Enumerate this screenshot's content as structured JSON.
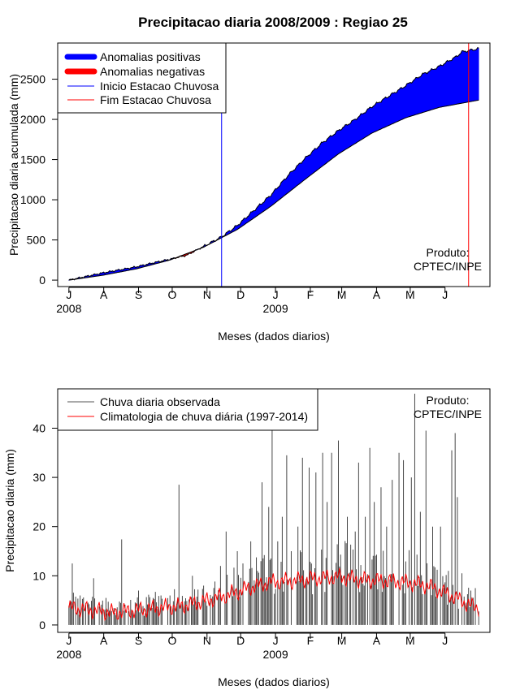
{
  "title": "Precipitacao diaria 2008/2009 : Regiao 25",
  "chart_data": [
    {
      "type": "area",
      "ylabel": "Precipitacao diaria acumulada (mm)",
      "xlabel": "Meses (dados diarios)",
      "ylim": [
        -80,
        2950
      ],
      "yticks": [
        0,
        500,
        1000,
        1500,
        2000,
        2500
      ],
      "x_domain_days": [
        -10,
        375
      ],
      "month_ticks": [
        {
          "label": "J",
          "day": 0
        },
        {
          "label": "A",
          "day": 31
        },
        {
          "label": "S",
          "day": 62
        },
        {
          "label": "O",
          "day": 92
        },
        {
          "label": "N",
          "day": 123
        },
        {
          "label": "D",
          "day": 153
        },
        {
          "label": "J",
          "day": 184
        },
        {
          "label": "F",
          "day": 215
        },
        {
          "label": "M",
          "day": 243
        },
        {
          "label": "A",
          "day": 274
        },
        {
          "label": "M",
          "day": 304
        },
        {
          "label": "J",
          "day": 335
        }
      ],
      "year_labels": [
        {
          "label": "2008",
          "day": 0
        },
        {
          "label": "2009",
          "day": 184
        }
      ],
      "climatology_cumulative": {
        "days": [
          0,
          30,
          60,
          90,
          120,
          150,
          180,
          210,
          240,
          270,
          300,
          330,
          365
        ],
        "values": [
          0,
          60,
          140,
          250,
          410,
          630,
          920,
          1250,
          1570,
          1830,
          2020,
          2150,
          2240
        ]
      },
      "observed_cumulative": {
        "days": [
          0,
          30,
          60,
          75,
          90,
          105,
          120,
          135,
          150,
          165,
          180,
          195,
          210,
          225,
          240,
          255,
          270,
          285,
          300,
          315,
          330,
          345,
          350,
          365
        ],
        "values": [
          0,
          90,
          165,
          215,
          260,
          310,
          420,
          530,
          680,
          870,
          1060,
          1300,
          1510,
          1700,
          1860,
          2000,
          2160,
          2290,
          2420,
          2560,
          2660,
          2780,
          2840,
          2880
        ]
      },
      "inicio_estacao_chuvosa_day": 136,
      "fim_estacao_chuvosa_day": 356,
      "legend": {
        "position": "top-left",
        "entries": [
          {
            "label": "Anomalias positivas",
            "color": "#0000ff",
            "style": "thick"
          },
          {
            "label": "Anomalias negativas",
            "color": "#ff0000",
            "style": "thick"
          },
          {
            "label": "Inicio Estacao Chuvosa",
            "color": "#0000ff",
            "style": "thin"
          },
          {
            "label": "Fim Estacao Chuvosa",
            "color": "#ff0000",
            "style": "thin"
          }
        ]
      },
      "product_label": [
        "Produto:",
        "CPTEC/INPE"
      ],
      "colors": {
        "positive": "#0000ff",
        "negative": "#ff0000",
        "inicio": "#0000ff",
        "fim": "#ff0000",
        "line": "#000000"
      }
    },
    {
      "type": "bar",
      "ylabel": "Precipitacao diaria (mm)",
      "xlabel": "Meses (dados diarios)",
      "ylim": [
        -1.5,
        48
      ],
      "yticks": [
        0,
        10,
        20,
        30,
        40
      ],
      "x_domain_days": [
        -10,
        375
      ],
      "month_ticks": [
        {
          "label": "J",
          "day": 0
        },
        {
          "label": "A",
          "day": 31
        },
        {
          "label": "S",
          "day": 62
        },
        {
          "label": "O",
          "day": 92
        },
        {
          "label": "N",
          "day": 123
        },
        {
          "label": "D",
          "day": 153
        },
        {
          "label": "J",
          "day": 184
        },
        {
          "label": "F",
          "day": 215
        },
        {
          "label": "M",
          "day": 243
        },
        {
          "label": "A",
          "day": 274
        },
        {
          "label": "M",
          "day": 304
        },
        {
          "label": "J",
          "day": 335
        }
      ],
      "year_labels": [
        {
          "label": "2008",
          "day": 0
        },
        {
          "label": "2009",
          "day": 184
        }
      ],
      "observed_daily_peaks": [
        [
          3,
          12.5
        ],
        [
          10,
          6
        ],
        [
          22,
          9.5
        ],
        [
          33,
          5.5
        ],
        [
          47,
          17.4
        ],
        [
          62,
          7
        ],
        [
          75,
          5.5
        ],
        [
          90,
          6
        ],
        [
          98,
          28.5
        ],
        [
          110,
          10
        ],
        [
          120,
          8
        ],
        [
          135,
          12
        ],
        [
          140,
          19
        ],
        [
          145,
          8
        ],
        [
          150,
          15
        ],
        [
          155,
          12.5
        ],
        [
          162,
          17
        ],
        [
          168,
          11
        ],
        [
          172,
          29
        ],
        [
          178,
          24
        ],
        [
          181,
          40
        ],
        [
          186,
          17
        ],
        [
          190,
          22
        ],
        [
          194,
          34.5
        ],
        [
          198,
          15
        ],
        [
          204,
          20
        ],
        [
          208,
          34
        ],
        [
          214,
          32
        ],
        [
          220,
          31
        ],
        [
          226,
          35
        ],
        [
          230,
          25
        ],
        [
          234,
          35
        ],
        [
          240,
          37.5
        ],
        [
          248,
          22
        ],
        [
          255,
          19
        ],
        [
          258,
          33
        ],
        [
          264,
          22
        ],
        [
          268,
          36
        ],
        [
          272,
          25
        ],
        [
          278,
          28
        ],
        [
          283,
          20
        ],
        [
          288,
          29.5
        ],
        [
          294,
          35
        ],
        [
          298,
          33.5
        ],
        [
          305,
          30
        ],
        [
          308,
          47
        ],
        [
          313,
          23
        ],
        [
          318,
          39.5
        ],
        [
          324,
          20
        ],
        [
          331,
          20
        ],
        [
          338,
          11
        ],
        [
          341,
          35.5
        ],
        [
          344,
          39
        ],
        [
          346,
          26
        ],
        [
          350,
          10.5
        ],
        [
          358,
          7
        ],
        [
          362,
          7.5
        ]
      ],
      "climatology_daily": {
        "days": [
          0,
          20,
          40,
          60,
          80,
          100,
          120,
          140,
          160,
          180,
          200,
          220,
          240,
          260,
          280,
          300,
          320,
          340,
          360,
          365
        ],
        "values": [
          3.5,
          3.0,
          2.5,
          3.0,
          3.5,
          3.8,
          4.8,
          6.0,
          7.5,
          8.7,
          9.0,
          9.5,
          9.8,
          9.2,
          9.0,
          8.7,
          8.0,
          6.0,
          3.7,
          3.6
        ]
      },
      "legend": {
        "position": "top-left",
        "entries": [
          {
            "label": "Chuva diaria observada",
            "color": "#555555"
          },
          {
            "label": "Climatologia de chuva diária (1997-2014)",
            "color": "#ff0000"
          }
        ]
      },
      "product_label": [
        "Produto:",
        "CPTEC/INPE"
      ],
      "colors": {
        "observed": "#333333",
        "climatology": "#ff0000"
      }
    }
  ]
}
